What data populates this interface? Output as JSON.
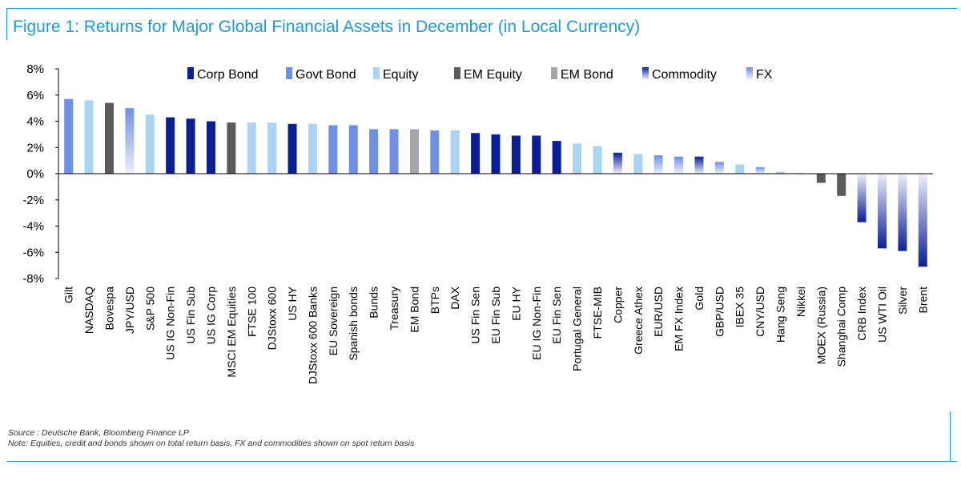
{
  "title": "Figure 1: Returns for Major Global Financial Assets in December (in Local Currency)",
  "source": "Source : Deutsche Bank, Bloomberg Finance LP",
  "note": "Note: Equities, credit and bonds shown on total return basis, FX and commodities shown on spot return basis",
  "colors": {
    "frame": "#1e9bd7",
    "corp_bond": "#0a1f96",
    "govt_bond": "#6e8fe6",
    "equity": "#a9d5f3",
    "em_equity": "#5a5a5f",
    "em_bond": "#a6a6aa",
    "commodity": "#0a1f96",
    "fx": "#6e8fe6"
  },
  "chart_data": {
    "type": "bar",
    "ylim": [
      -8,
      8
    ],
    "yticks": [
      "8%",
      "6%",
      "4%",
      "2%",
      "0%",
      "-2%",
      "-4%",
      "-6%",
      "-8%"
    ],
    "grid": false,
    "legend_position": "top",
    "legend": [
      {
        "key": "corp_bond",
        "label": "Corp Bond"
      },
      {
        "key": "govt_bond",
        "label": "Govt Bond"
      },
      {
        "key": "equity",
        "label": "Equity"
      },
      {
        "key": "em_equity",
        "label": "EM Equity"
      },
      {
        "key": "em_bond",
        "label": "EM Bond"
      },
      {
        "key": "commodity",
        "label": "Commodity"
      },
      {
        "key": "fx",
        "label": "FX"
      }
    ],
    "categories": [
      "Gilt",
      "NASDAQ",
      "Bovespa",
      "JPY/USD",
      "S&P 500",
      "US IG Non-Fin",
      "US Fin Sub",
      "US IG Corp",
      "MSCI EM Equities",
      "FTSE 100",
      "DJStoxx 600",
      "US HY",
      "DJStoxx 600 Banks",
      "EU Sovereign",
      "Spanish bonds",
      "Bunds",
      "Treasury",
      "EM Bond",
      "BTPs",
      "DAX",
      "US Fin Sen",
      "EU Fin Sub",
      "EU HY",
      "EU IG Non-Fin",
      "EU Fin Sen",
      "Portugal General",
      "FTSE-MIB",
      "Copper",
      "Greece Athex",
      "EUR/USD",
      "EM FX Index",
      "Gold",
      "GBP/USD",
      "IBEX 35",
      "CNY/USD",
      "Hang Seng",
      "Nikkei",
      "MOEX (Russia)",
      "Shanghai Comp",
      "CRB Index",
      "US WTI Oil",
      "Silver",
      "Brent"
    ],
    "values": [
      5.7,
      5.6,
      5.4,
      5.0,
      4.5,
      4.3,
      4.2,
      4.0,
      3.9,
      3.9,
      3.9,
      3.8,
      3.8,
      3.7,
      3.7,
      3.4,
      3.4,
      3.4,
      3.3,
      3.3,
      3.1,
      3.0,
      2.9,
      2.9,
      2.5,
      2.3,
      2.1,
      1.6,
      1.5,
      1.4,
      1.3,
      1.3,
      0.9,
      0.7,
      0.5,
      0.15,
      0.05,
      -0.7,
      -1.7,
      -3.7,
      -5.7,
      -5.9,
      -7.1
    ],
    "asset_class": [
      "govt_bond",
      "equity",
      "em_equity",
      "fx",
      "equity",
      "corp_bond",
      "corp_bond",
      "corp_bond",
      "em_equity",
      "equity",
      "equity",
      "corp_bond",
      "equity",
      "govt_bond",
      "govt_bond",
      "govt_bond",
      "govt_bond",
      "em_bond",
      "govt_bond",
      "equity",
      "corp_bond",
      "corp_bond",
      "corp_bond",
      "corp_bond",
      "corp_bond",
      "equity",
      "equity",
      "commodity",
      "equity",
      "fx",
      "fx",
      "commodity",
      "fx",
      "equity",
      "fx",
      "equity",
      "equity",
      "em_equity",
      "em_equity",
      "commodity",
      "commodity",
      "commodity",
      "commodity"
    ]
  }
}
